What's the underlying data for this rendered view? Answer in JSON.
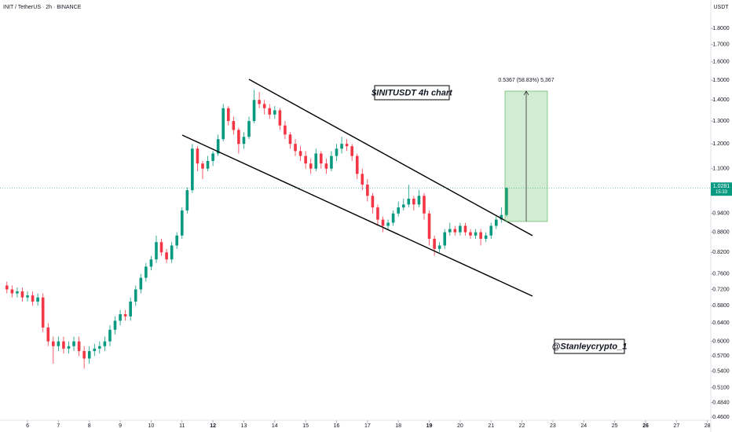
{
  "chart_data": {
    "type": "candlestick",
    "title": "INIT / TetherUS · 2h · BINANCE",
    "y_axis_label": "USDT",
    "log_scale": true,
    "grid": false,
    "up_color": "#089981",
    "down_color": "#f23645",
    "annotations": [
      "$INITUSDT 4h chart",
      "@Stanleycrypto_1",
      "0.5367 (58.83%) 5,367"
    ],
    "current_price": 1.0281,
    "countdown": "15:33",
    "xlim": [
      5.11,
      28.11
    ],
    "xticks": [
      6,
      7,
      8,
      9,
      10,
      11,
      12,
      13,
      14,
      15,
      16,
      17,
      18,
      19,
      20,
      21,
      22,
      23,
      24,
      25,
      26,
      27,
      28
    ],
    "bold_xticks": [
      12,
      19,
      26
    ],
    "ylim": [
      0.455,
      1.988
    ],
    "yticks": [
      {
        "value": 1.8,
        "label": "1.8000"
      },
      {
        "value": 1.7,
        "label": "1.7000"
      },
      {
        "value": 1.6,
        "label": "1.6000"
      },
      {
        "value": 1.5,
        "label": "1.5000"
      },
      {
        "value": 1.4,
        "label": "1.4000"
      },
      {
        "value": 1.3,
        "label": "1.3000"
      },
      {
        "value": 1.2,
        "label": "1.2000"
      },
      {
        "value": 1.1,
        "label": "1.1000"
      },
      {
        "value": 0.94,
        "label": "0.9400"
      },
      {
        "value": 0.88,
        "label": "0.8800"
      },
      {
        "value": 0.82,
        "label": "0.8200"
      },
      {
        "value": 0.76,
        "label": "0.7600"
      },
      {
        "value": 0.72,
        "label": "0.7200"
      },
      {
        "value": 0.68,
        "label": "0.6800"
      },
      {
        "value": 0.64,
        "label": "0.6400"
      },
      {
        "value": 0.6,
        "label": "0.6000"
      },
      {
        "value": 0.57,
        "label": "0.5700"
      },
      {
        "value": 0.54,
        "label": "0.5400"
      },
      {
        "value": 0.51,
        "label": "0.5100"
      },
      {
        "value": 0.484,
        "label": "0.4840"
      },
      {
        "value": 0.46,
        "label": "0.4600"
      }
    ],
    "x": [
      5.333,
      5.5,
      5.667,
      5.833,
      6,
      6.167,
      6.333,
      6.5,
      6.667,
      6.833,
      7,
      7.167,
      7.333,
      7.5,
      7.667,
      7.833,
      8,
      8.167,
      8.333,
      8.5,
      8.667,
      8.833,
      9,
      9.167,
      9.333,
      9.5,
      9.667,
      9.833,
      10,
      10.167,
      10.333,
      10.5,
      10.667,
      10.833,
      11,
      11.167,
      11.333,
      11.5,
      11.667,
      11.833,
      12,
      12.167,
      12.333,
      12.5,
      12.667,
      12.833,
      13,
      13.167,
      13.333,
      13.5,
      13.667,
      13.833,
      14,
      14.167,
      14.333,
      14.5,
      14.667,
      14.833,
      15,
      15.167,
      15.333,
      15.5,
      15.667,
      15.833,
      16,
      16.167,
      16.333,
      16.5,
      16.667,
      16.833,
      17,
      17.167,
      17.333,
      17.5,
      17.667,
      17.833,
      18,
      18.167,
      18.333,
      18.5,
      18.667,
      18.833,
      19,
      19.167,
      19.333,
      19.5,
      19.667,
      19.833,
      20,
      20.167,
      20.333,
      20.5,
      20.667,
      20.833,
      21,
      21.167,
      21.333,
      21.5
    ],
    "open": [
      0.73,
      0.72,
      0.71,
      0.715,
      0.7,
      0.705,
      0.69,
      0.7,
      0.63,
      0.6,
      0.59,
      0.6,
      0.585,
      0.59,
      0.6,
      0.58,
      0.565,
      0.58,
      0.585,
      0.59,
      0.6,
      0.625,
      0.645,
      0.66,
      0.655,
      0.69,
      0.72,
      0.75,
      0.78,
      0.8,
      0.85,
      0.82,
      0.8,
      0.84,
      0.87,
      0.95,
      1.02,
      1.18,
      1.12,
      1.1,
      1.13,
      1.16,
      1.22,
      1.36,
      1.3,
      1.26,
      1.2,
      1.23,
      1.3,
      1.4,
      1.38,
      1.36,
      1.33,
      1.35,
      1.28,
      1.24,
      1.2,
      1.17,
      1.15,
      1.12,
      1.1,
      1.16,
      1.12,
      1.1,
      1.15,
      1.18,
      1.2,
      1.19,
      1.15,
      1.08,
      1.04,
      1.0,
      0.96,
      0.92,
      0.9,
      0.91,
      0.94,
      0.96,
      0.97,
      0.99,
      0.97,
      1.0,
      0.94,
      0.86,
      0.83,
      0.84,
      0.88,
      0.89,
      0.88,
      0.9,
      0.88,
      0.87,
      0.88,
      0.86,
      0.87,
      0.9,
      0.92,
      0.935
    ],
    "high": [
      0.74,
      0.73,
      0.725,
      0.725,
      0.715,
      0.715,
      0.71,
      0.71,
      0.64,
      0.61,
      0.61,
      0.61,
      0.6,
      0.61,
      0.61,
      0.59,
      0.59,
      0.595,
      0.6,
      0.61,
      0.635,
      0.655,
      0.67,
      0.67,
      0.7,
      0.73,
      0.76,
      0.79,
      0.81,
      0.87,
      0.86,
      0.83,
      0.85,
      0.88,
      0.96,
      1.03,
      1.2,
      1.19,
      1.13,
      1.15,
      1.17,
      1.24,
      1.38,
      1.37,
      1.32,
      1.27,
      1.25,
      1.32,
      1.45,
      1.44,
      1.4,
      1.38,
      1.37,
      1.36,
      1.3,
      1.25,
      1.22,
      1.19,
      1.17,
      1.14,
      1.18,
      1.17,
      1.14,
      1.17,
      1.2,
      1.23,
      1.22,
      1.2,
      1.16,
      1.1,
      1.06,
      1.01,
      0.97,
      0.93,
      0.92,
      0.95,
      0.98,
      0.99,
      1.04,
      1.0,
      1.02,
      1.01,
      0.95,
      0.87,
      0.85,
      0.89,
      0.91,
      0.9,
      0.91,
      0.91,
      0.89,
      0.89,
      0.89,
      0.88,
      0.91,
      0.93,
      0.96,
      1.03
    ],
    "low": [
      0.71,
      0.7,
      0.7,
      0.69,
      0.69,
      0.68,
      0.68,
      0.62,
      0.59,
      0.555,
      0.58,
      0.575,
      0.575,
      0.58,
      0.57,
      0.545,
      0.555,
      0.57,
      0.575,
      0.58,
      0.59,
      0.615,
      0.635,
      0.645,
      0.645,
      0.68,
      0.71,
      0.74,
      0.77,
      0.79,
      0.81,
      0.79,
      0.79,
      0.83,
      0.86,
      0.94,
      1.01,
      1.09,
      1.06,
      1.09,
      1.11,
      1.15,
      1.21,
      1.28,
      1.24,
      1.16,
      1.18,
      1.22,
      1.29,
      1.36,
      1.33,
      1.31,
      1.31,
      1.26,
      1.22,
      1.18,
      1.15,
      1.13,
      1.1,
      1.08,
      1.09,
      1.1,
      1.08,
      1.09,
      1.13,
      1.16,
      1.17,
      1.13,
      1.06,
      1.02,
      0.98,
      0.94,
      0.9,
      0.88,
      0.89,
      0.9,
      0.93,
      0.95,
      0.96,
      0.95,
      0.96,
      0.92,
      0.84,
      0.81,
      0.82,
      0.83,
      0.87,
      0.87,
      0.87,
      0.87,
      0.86,
      0.86,
      0.84,
      0.85,
      0.86,
      0.89,
      0.91,
      0.93
    ],
    "close": [
      0.72,
      0.71,
      0.715,
      0.7,
      0.705,
      0.69,
      0.7,
      0.63,
      0.6,
      0.59,
      0.6,
      0.585,
      0.59,
      0.6,
      0.58,
      0.565,
      0.58,
      0.585,
      0.59,
      0.6,
      0.625,
      0.645,
      0.66,
      0.655,
      0.69,
      0.72,
      0.75,
      0.78,
      0.8,
      0.85,
      0.82,
      0.8,
      0.84,
      0.87,
      0.95,
      1.02,
      1.18,
      1.12,
      1.1,
      1.13,
      1.16,
      1.22,
      1.36,
      1.3,
      1.26,
      1.2,
      1.23,
      1.3,
      1.4,
      1.38,
      1.36,
      1.33,
      1.35,
      1.28,
      1.24,
      1.2,
      1.17,
      1.15,
      1.12,
      1.1,
      1.16,
      1.12,
      1.1,
      1.15,
      1.18,
      1.2,
      1.19,
      1.15,
      1.08,
      1.04,
      1.0,
      0.96,
      0.92,
      0.9,
      0.91,
      0.94,
      0.96,
      0.97,
      0.99,
      0.97,
      1.0,
      0.94,
      0.86,
      0.83,
      0.84,
      0.88,
      0.89,
      0.88,
      0.9,
      0.88,
      0.87,
      0.88,
      0.86,
      0.87,
      0.9,
      0.92,
      0.935,
      1.0281
    ]
  }
}
